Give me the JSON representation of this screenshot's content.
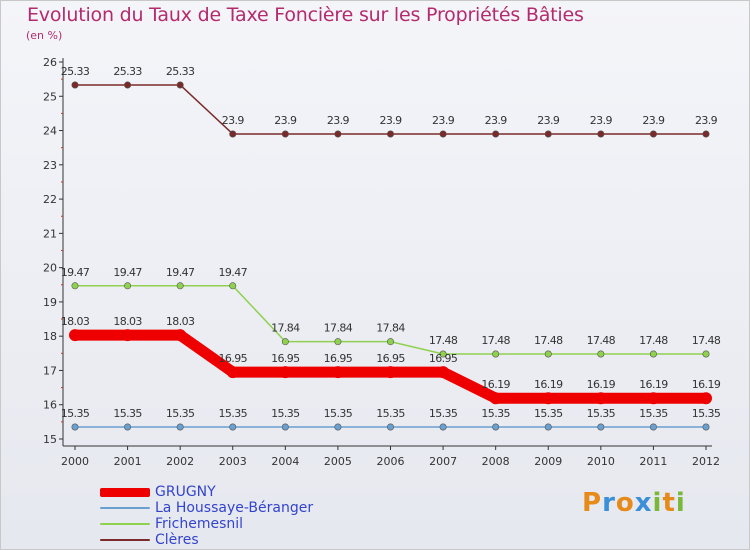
{
  "title": "Evolution du Taux de Taxe Foncière sur les Propriétés Bâties",
  "subtitle": "(en %)",
  "logo": {
    "letters": [
      "P",
      "r",
      "o",
      "x",
      "i",
      "t",
      "i"
    ],
    "colors": [
      "#e68a1a",
      "#3b8fd6",
      "#e68a1a",
      "#3b8fd6",
      "#7ab83a",
      "#e68a1a",
      "#7ab83a"
    ]
  },
  "chart_data": {
    "type": "line",
    "title": "Evolution du Taux de Taxe Foncière sur les Propriétés Bâties",
    "ylabel": "(en %)",
    "xlabel": "",
    "categories": [
      "2000",
      "2001",
      "2002",
      "2003",
      "2004",
      "2005",
      "2006",
      "2007",
      "2008",
      "2009",
      "2010",
      "2011",
      "2012"
    ],
    "ylim": [
      15,
      26
    ],
    "yticks": [
      15,
      16,
      17,
      18,
      19,
      20,
      21,
      22,
      23,
      24,
      25,
      26
    ],
    "grid": false,
    "legend": "bottom-left",
    "series": [
      {
        "name": "Clères",
        "color": "#7a2a2a",
        "values": [
          25.33,
          25.33,
          25.33,
          23.9,
          23.9,
          23.9,
          23.9,
          23.9,
          23.9,
          23.9,
          23.9,
          23.9,
          23.9
        ],
        "labels": [
          "25.33",
          "25.33",
          "25.33",
          "23.9",
          "23.9",
          "23.9",
          "23.9",
          "23.9",
          "23.9",
          "23.9",
          "23.9",
          "23.9",
          "23.9"
        ]
      },
      {
        "name": "Frichemesnil",
        "color": "#8fd14f",
        "values": [
          19.47,
          19.47,
          19.47,
          19.47,
          17.84,
          17.84,
          17.84,
          17.48,
          17.48,
          17.48,
          17.48,
          17.48,
          17.48
        ],
        "labels": [
          "19.47",
          "19.47",
          "19.47",
          "19.47",
          "17.84",
          "17.84",
          "17.84",
          "17.48",
          "17.48",
          "17.48",
          "17.48",
          "17.48",
          "17.48"
        ]
      },
      {
        "name": "GRUGNY",
        "color": "#ee0000",
        "values": [
          18.03,
          18.03,
          18.03,
          16.95,
          16.95,
          16.95,
          16.95,
          16.95,
          16.19,
          16.19,
          16.19,
          16.19,
          16.19
        ],
        "labels": [
          "18.03",
          "18.03",
          "18.03",
          "16.95",
          "16.95",
          "16.95",
          "16.95",
          "16.95",
          "16.19",
          "16.19",
          "16.19",
          "16.19",
          "16.19"
        ]
      },
      {
        "name": "La Houssaye-Béranger",
        "color": "#6aa0d0",
        "values": [
          15.35,
          15.35,
          15.35,
          15.35,
          15.35,
          15.35,
          15.35,
          15.35,
          15.35,
          15.35,
          15.35,
          15.35,
          15.35
        ],
        "labels": [
          "15.35",
          "15.35",
          "15.35",
          "15.35",
          "15.35",
          "15.35",
          "15.35",
          "15.35",
          "15.35",
          "15.35",
          "15.35",
          "15.35",
          "15.35"
        ]
      }
    ]
  },
  "legend": [
    {
      "name": "GRUGNY",
      "color": "#ee0000",
      "text_color": "#3344cc"
    },
    {
      "name": "La Houssaye-Béranger",
      "color": "#6aa0d0",
      "text_color": "#3344cc"
    },
    {
      "name": "Frichemesnil",
      "color": "#8fd14f",
      "text_color": "#3344cc"
    },
    {
      "name": "Clères",
      "color": "#7a2a2a",
      "text_color": "#3344cc"
    }
  ]
}
